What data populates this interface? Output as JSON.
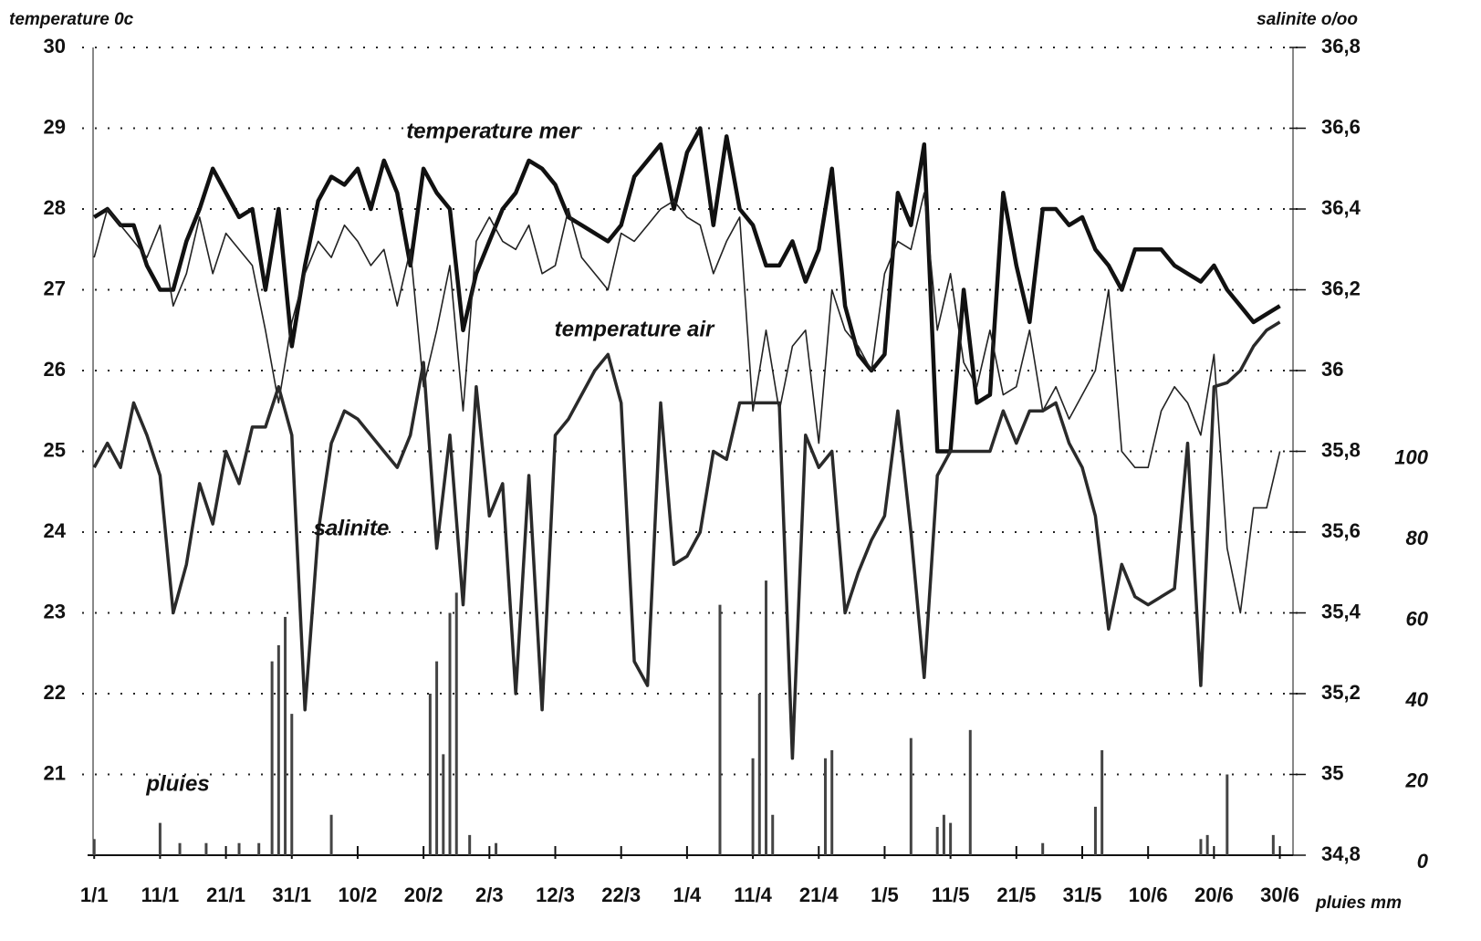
{
  "chart_data": {
    "type": "line",
    "y_label": "temperature 0c",
    "y2_label": "salinite o/oo",
    "y3_label": "pluies mm",
    "annotations": [
      "temperature mer",
      "temperature air",
      "salinite",
      "pluies"
    ],
    "xlim": [
      0,
      183
    ],
    "xticks": [
      {
        "value": 1,
        "label": "1/1"
      },
      {
        "value": 11,
        "label": "11/1"
      },
      {
        "value": 21,
        "label": "21/1"
      },
      {
        "value": 31,
        "label": "31/1"
      },
      {
        "value": 41,
        "label": "10/2"
      },
      {
        "value": 51,
        "label": "20/2"
      },
      {
        "value": 61,
        "label": "2/3"
      },
      {
        "value": 71,
        "label": "12/3"
      },
      {
        "value": 81,
        "label": "22/3"
      },
      {
        "value": 91,
        "label": "1/4"
      },
      {
        "value": 101,
        "label": "11/4"
      },
      {
        "value": 111,
        "label": "21/4"
      },
      {
        "value": 121,
        "label": "1/5"
      },
      {
        "value": 131,
        "label": "11/5"
      },
      {
        "value": 141,
        "label": "21/5"
      },
      {
        "value": 151,
        "label": "31/5"
      },
      {
        "value": 161,
        "label": "10/6"
      },
      {
        "value": 171,
        "label": "20/6"
      },
      {
        "value": 181,
        "label": "30/6"
      }
    ],
    "ylim": [
      20,
      30
    ],
    "yticks": [
      21,
      22,
      23,
      24,
      25,
      26,
      27,
      28,
      29,
      30
    ],
    "y2lim": [
      34.8,
      36.8
    ],
    "y2ticks": [
      {
        "value": 34.8,
        "label": "34,8"
      },
      35,
      {
        "value": 35.2,
        "label": "35,2"
      },
      {
        "value": 35.4,
        "label": "35,4"
      },
      {
        "value": 35.6,
        "label": "35,6"
      },
      {
        "value": 35.8,
        "label": "35,8"
      },
      36,
      {
        "value": 36.2,
        "label": "36,2"
      },
      {
        "value": 36.4,
        "label": "36,4"
      },
      {
        "value": 36.6,
        "label": "36,6"
      },
      {
        "value": 36.8,
        "label": "36,8"
      }
    ],
    "y3lim": [
      0,
      200
    ],
    "y3ticks": [
      0,
      20,
      40,
      60,
      80,
      100
    ],
    "grid": true,
    "x": [
      1,
      3,
      5,
      7,
      9,
      11,
      13,
      15,
      17,
      19,
      21,
      23,
      25,
      27,
      29,
      31,
      33,
      35,
      37,
      39,
      41,
      43,
      45,
      47,
      49,
      51,
      53,
      55,
      57,
      59,
      61,
      63,
      65,
      67,
      69,
      71,
      73,
      75,
      77,
      79,
      81,
      83,
      85,
      87,
      89,
      91,
      93,
      95,
      97,
      99,
      101,
      103,
      105,
      107,
      109,
      111,
      113,
      115,
      117,
      119,
      121,
      123,
      125,
      127,
      129,
      131,
      133,
      135,
      137,
      139,
      141,
      143,
      145,
      147,
      149,
      151,
      153,
      155,
      157,
      159,
      161,
      163,
      165,
      167,
      169,
      171,
      173,
      175,
      177,
      179,
      181
    ],
    "series": [
      {
        "name": "temperature mer",
        "color": "#111111",
        "values": [
          27.9,
          28.0,
          27.8,
          27.8,
          27.3,
          27.0,
          27.0,
          27.6,
          28.0,
          28.5,
          28.2,
          27.9,
          28.0,
          27.0,
          28.0,
          26.3,
          27.3,
          28.1,
          28.4,
          28.3,
          28.5,
          28.0,
          28.6,
          28.2,
          27.3,
          28.5,
          28.2,
          28.0,
          26.5,
          27.2,
          27.6,
          28.0,
          28.2,
          28.6,
          28.5,
          28.3,
          27.9,
          27.8,
          27.7,
          27.6,
          27.8,
          28.4,
          28.6,
          28.8,
          28.0,
          28.7,
          29.0,
          27.8,
          28.9,
          28.0,
          27.8,
          27.3,
          27.3,
          27.6,
          27.1,
          27.5,
          28.5,
          26.8,
          26.2,
          26.0,
          26.2,
          28.2,
          27.8,
          28.8,
          25.0,
          25.0,
          27.0,
          25.6,
          25.7,
          28.2,
          27.3,
          26.6,
          28.0,
          28.0,
          27.8,
          27.9,
          27.5,
          27.3,
          27.0,
          27.5,
          27.5,
          27.5,
          27.3,
          27.2,
          27.1,
          27.3,
          27.0,
          26.8,
          26.6,
          26.7,
          26.8
        ]
      },
      {
        "name": "temperature air",
        "color": "#222222",
        "values": [
          27.4,
          28.0,
          27.8,
          27.6,
          27.4,
          27.8,
          26.8,
          27.2,
          27.9,
          27.2,
          27.7,
          27.5,
          27.3,
          26.5,
          25.6,
          26.6,
          27.2,
          27.6,
          27.4,
          27.8,
          27.6,
          27.3,
          27.5,
          26.8,
          27.5,
          25.8,
          26.5,
          27.3,
          25.5,
          27.6,
          27.9,
          27.6,
          27.5,
          27.8,
          27.2,
          27.3,
          28.0,
          27.4,
          27.2,
          27.0,
          27.7,
          27.6,
          27.8,
          28.0,
          28.1,
          27.9,
          27.8,
          27.2,
          27.6,
          27.9,
          25.5,
          26.5,
          25.5,
          26.3,
          26.5,
          25.1,
          27.0,
          26.5,
          26.3,
          26.0,
          27.2,
          27.6,
          27.5,
          28.2,
          26.5,
          27.2,
          26.1,
          25.8,
          26.5,
          25.7,
          25.8,
          26.5,
          25.5,
          25.8,
          25.4,
          25.7,
          26.0,
          27.0,
          25.0,
          24.8,
          24.8,
          25.5,
          25.8,
          25.6,
          25.2,
          26.2,
          23.8,
          23.0,
          24.3,
          24.3,
          25.0
        ]
      },
      {
        "name": "salinite",
        "color": "#2a2a2a",
        "axis": "y2",
        "values": [
          35.76,
          35.82,
          35.76,
          35.92,
          35.84,
          35.74,
          35.4,
          35.52,
          35.72,
          35.62,
          35.8,
          35.72,
          35.86,
          35.86,
          35.96,
          35.84,
          35.16,
          35.6,
          35.82,
          35.9,
          35.88,
          35.84,
          35.8,
          35.76,
          35.84,
          36.02,
          35.56,
          35.84,
          35.42,
          35.96,
          35.64,
          35.72,
          35.2,
          35.74,
          35.16,
          35.84,
          35.88,
          35.94,
          36.0,
          36.04,
          35.92,
          35.28,
          35.22,
          35.92,
          35.52,
          35.54,
          35.6,
          35.8,
          35.78,
          35.92,
          35.92,
          35.92,
          35.92,
          35.04,
          35.84,
          35.76,
          35.8,
          35.4,
          35.5,
          35.58,
          35.64,
          35.9,
          35.6,
          35.24,
          35.74,
          35.8,
          35.8,
          35.8,
          35.8,
          35.9,
          35.82,
          35.9,
          35.9,
          35.92,
          35.82,
          35.76,
          35.64,
          35.36,
          35.52,
          35.44,
          35.42,
          35.44,
          35.46,
          35.82,
          35.22,
          35.96,
          35.97,
          36.0,
          36.06,
          36.1,
          36.12
        ]
      },
      {
        "name": "pluies",
        "color": "#444444",
        "axis": "y3",
        "kind": "bar",
        "x": [
          1,
          11,
          14,
          18,
          23,
          26,
          28,
          29,
          30,
          31,
          37,
          52,
          53,
          54,
          55,
          56,
          58,
          62,
          96,
          101,
          102,
          103,
          104,
          112,
          113,
          125,
          129,
          130,
          131,
          134,
          145,
          153,
          154,
          169,
          170,
          173,
          180
        ],
        "values": [
          4,
          8,
          3,
          3,
          3,
          3,
          48,
          52,
          59,
          35,
          10,
          40,
          48,
          25,
          60,
          65,
          5,
          3,
          62,
          24,
          40,
          68,
          10,
          24,
          26,
          29,
          7,
          10,
          8,
          31,
          3,
          12,
          26,
          4,
          5,
          20,
          5
        ]
      }
    ]
  }
}
